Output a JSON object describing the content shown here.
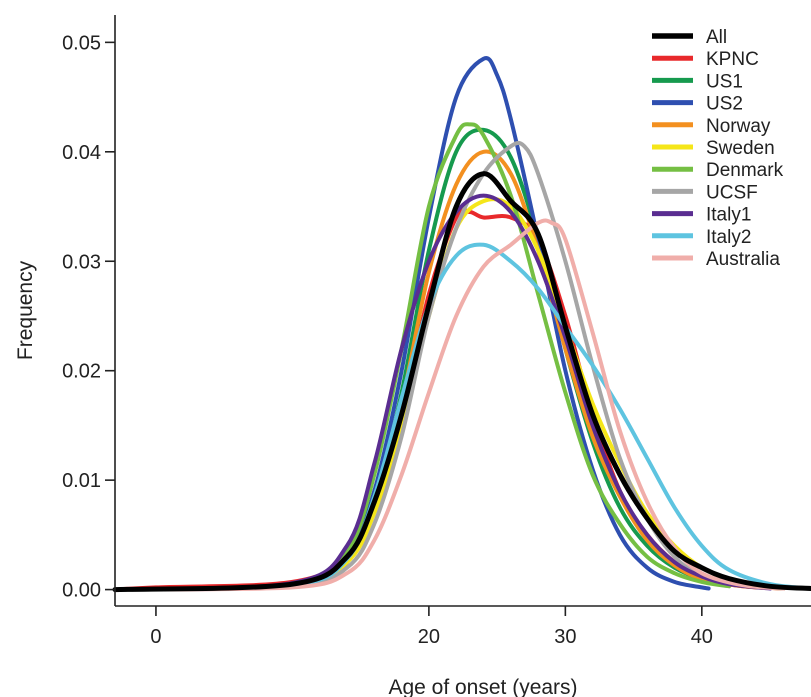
{
  "chart_data": {
    "type": "line",
    "title": "",
    "xlabel": "Age of onset (years)",
    "ylabel": "Frequency",
    "xlim": [
      -3,
      48
    ],
    "ylim": [
      -0.0015,
      0.0525
    ],
    "x_ticks": [
      "0",
      "20",
      "30",
      "40"
    ],
    "x_tick_values": [
      0,
      20,
      30,
      40
    ],
    "y_ticks": [
      "0.00",
      "0.01",
      "0.02",
      "0.03",
      "0.04",
      "0.05"
    ],
    "y_tick_values": [
      0,
      0.01,
      0.02,
      0.03,
      0.04,
      0.05
    ],
    "grid": false,
    "legend_position": "top-right",
    "series": [
      {
        "name": "All",
        "color": "#000000",
        "x": [
          -3,
          10,
          14,
          16,
          18,
          20,
          22,
          24,
          26,
          28,
          30,
          32,
          34,
          36,
          38,
          40,
          42,
          45,
          48
        ],
        "y": [
          0,
          0.0005,
          0.003,
          0.008,
          0.016,
          0.026,
          0.035,
          0.038,
          0.0355,
          0.0325,
          0.024,
          0.016,
          0.0105,
          0.0065,
          0.0035,
          0.002,
          0.001,
          0.0003,
          0.0001
        ]
      },
      {
        "name": "KPNC",
        "color": "#e8292b",
        "x": [
          -3,
          0,
          10,
          14,
          16,
          18,
          20,
          22,
          23,
          24,
          26,
          28,
          30,
          32,
          34,
          36,
          38,
          40,
          43,
          46
        ],
        "y": [
          0,
          0.0002,
          0.0007,
          0.003,
          0.008,
          0.016,
          0.027,
          0.034,
          0.0345,
          0.034,
          0.034,
          0.032,
          0.025,
          0.016,
          0.009,
          0.005,
          0.0025,
          0.001,
          0.0003,
          0.0001
        ]
      },
      {
        "name": "US1",
        "color": "#169a4e",
        "x": [
          -3,
          10,
          14,
          16,
          18,
          20,
          22,
          24,
          26,
          28,
          30,
          32,
          34,
          36,
          38,
          40,
          42
        ],
        "y": [
          0,
          0.0004,
          0.0025,
          0.008,
          0.018,
          0.031,
          0.04,
          0.042,
          0.0395,
          0.032,
          0.022,
          0.0135,
          0.0075,
          0.004,
          0.002,
          0.001,
          0.0004
        ]
      },
      {
        "name": "US2",
        "color": "#2e4fb0",
        "x": [
          -3,
          10,
          14,
          16,
          18,
          20,
          22,
          24,
          25,
          26,
          28,
          30,
          32,
          34,
          36,
          38,
          40,
          40.5
        ],
        "y": [
          0,
          0.0004,
          0.003,
          0.009,
          0.02,
          0.034,
          0.045,
          0.0485,
          0.047,
          0.043,
          0.032,
          0.02,
          0.011,
          0.005,
          0.002,
          0.0007,
          0.0002,
          0.0001
        ]
      },
      {
        "name": "Norway",
        "color": "#f39020",
        "x": [
          -3,
          10,
          14,
          16,
          18,
          20,
          22,
          24,
          26,
          28,
          30,
          32,
          34,
          36,
          38,
          40,
          43,
          46
        ],
        "y": [
          0,
          0.0004,
          0.0025,
          0.0075,
          0.017,
          0.029,
          0.037,
          0.04,
          0.038,
          0.031,
          0.022,
          0.014,
          0.0085,
          0.0045,
          0.0022,
          0.001,
          0.0003,
          0.0001
        ]
      },
      {
        "name": "Sweden",
        "color": "#f5e619",
        "x": [
          -3,
          10,
          14,
          16,
          18,
          20,
          22,
          24,
          26,
          28,
          30,
          32,
          34,
          36,
          38,
          40,
          42,
          45,
          48
        ],
        "y": [
          0,
          0.0004,
          0.0025,
          0.007,
          0.015,
          0.025,
          0.033,
          0.0355,
          0.035,
          0.031,
          0.024,
          0.017,
          0.0115,
          0.007,
          0.004,
          0.002,
          0.001,
          0.0003,
          0.0001
        ]
      },
      {
        "name": "Denmark",
        "color": "#75bf43",
        "x": [
          -3,
          10,
          14,
          16,
          18,
          20,
          22,
          23,
          24,
          26,
          28,
          30,
          32,
          34,
          36,
          38,
          40,
          42
        ],
        "y": [
          0,
          0.0005,
          0.0035,
          0.0105,
          0.022,
          0.035,
          0.0415,
          0.0425,
          0.0415,
          0.036,
          0.027,
          0.018,
          0.0105,
          0.006,
          0.003,
          0.0015,
          0.0007,
          0.0003
        ]
      },
      {
        "name": "UCSF",
        "color": "#a6a6a6",
        "x": [
          -3,
          10,
          14,
          16,
          18,
          20,
          22,
          24,
          26,
          27,
          28,
          30,
          32,
          34,
          36,
          38,
          40,
          43,
          46
        ],
        "y": [
          0,
          0.0003,
          0.002,
          0.006,
          0.014,
          0.025,
          0.033,
          0.038,
          0.0405,
          0.0405,
          0.038,
          0.03,
          0.0205,
          0.012,
          0.0065,
          0.003,
          0.0013,
          0.0004,
          0.0001
        ]
      },
      {
        "name": "Italy1",
        "color": "#5a2d91",
        "x": [
          -3,
          10,
          14,
          16,
          18,
          20,
          22,
          24,
          26,
          28,
          30,
          32,
          34,
          36,
          38,
          40,
          42,
          45
        ],
        "y": [
          0,
          0.0006,
          0.004,
          0.0115,
          0.022,
          0.03,
          0.0345,
          0.036,
          0.0345,
          0.03,
          0.023,
          0.015,
          0.009,
          0.005,
          0.0025,
          0.0012,
          0.0005,
          0.0001
        ]
      },
      {
        "name": "Italy2",
        "color": "#5ec4e0",
        "x": [
          -3,
          10,
          14,
          16,
          18,
          20,
          22,
          24,
          26,
          28,
          30,
          32,
          34,
          36,
          38,
          40,
          42,
          45,
          48
        ],
        "y": [
          0,
          0.0004,
          0.0028,
          0.0085,
          0.0175,
          0.026,
          0.0305,
          0.0315,
          0.03,
          0.0275,
          0.024,
          0.0205,
          0.0165,
          0.012,
          0.0075,
          0.004,
          0.0018,
          0.0005,
          0.0001
        ]
      },
      {
        "name": "Australia",
        "color": "#f0aeaa",
        "x": [
          -3,
          10,
          14,
          16,
          18,
          20,
          22,
          24,
          26,
          28,
          29,
          30,
          32,
          34,
          36,
          38,
          40,
          43,
          46
        ],
        "y": [
          0,
          0.0002,
          0.0015,
          0.0045,
          0.0105,
          0.018,
          0.025,
          0.0295,
          0.0315,
          0.0335,
          0.0335,
          0.032,
          0.0235,
          0.0145,
          0.008,
          0.0038,
          0.0015,
          0.0004,
          0.0001
        ]
      }
    ]
  }
}
